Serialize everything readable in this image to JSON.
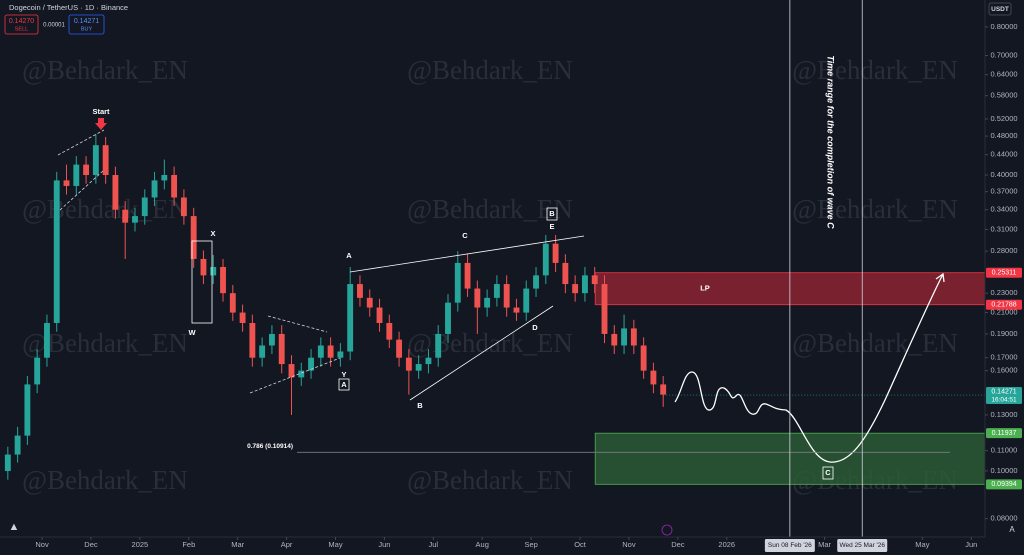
{
  "chart_data": {
    "type": "candlestick",
    "title": "Dogecoin / TetherUS · 1D · Binance",
    "currency": "USDT",
    "sell": {
      "price": "0.14270",
      "label": "SELL"
    },
    "spread": "0.00001",
    "buy": {
      "price": "0.14271",
      "label": "BUY"
    },
    "watermark": "@Behdark_EN",
    "log_scale": true,
    "grid": false,
    "up_color": "#26a69a",
    "down_color": "#ef5350",
    "xlim": [
      0.14,
      20.28
    ],
    "xticks": [
      {
        "value": 1,
        "label": "Nov"
      },
      {
        "value": 2,
        "label": "Dec"
      },
      {
        "value": 3,
        "label": "2025"
      },
      {
        "value": 4,
        "label": "Feb"
      },
      {
        "value": 5,
        "label": "Mar"
      },
      {
        "value": 6,
        "label": "Apr"
      },
      {
        "value": 7,
        "label": "May"
      },
      {
        "value": 8,
        "label": "Jun"
      },
      {
        "value": 9,
        "label": "Jul"
      },
      {
        "value": 10,
        "label": "Aug"
      },
      {
        "value": 11,
        "label": "Sep"
      },
      {
        "value": 12,
        "label": "Oct"
      },
      {
        "value": 13,
        "label": "Nov"
      },
      {
        "value": 14,
        "label": "Dec"
      },
      {
        "value": 15,
        "label": "2026"
      },
      {
        "value": 17,
        "label": "Mar"
      },
      {
        "value": 19,
        "label": "May"
      },
      {
        "value": 20,
        "label": "Jun"
      }
    ],
    "ylim": [
      0.0734,
      0.908
    ],
    "yticks": [
      {
        "value": 0.8,
        "label": "0.80000"
      },
      {
        "value": 0.7,
        "label": "0.70000"
      },
      {
        "value": 0.64,
        "label": "0.64000"
      },
      {
        "value": 0.58,
        "label": "0.58000"
      },
      {
        "value": 0.52,
        "label": "0.52000"
      },
      {
        "value": 0.48,
        "label": "0.48000"
      },
      {
        "value": 0.44,
        "label": "0.44000"
      },
      {
        "value": 0.4,
        "label": "0.40000"
      },
      {
        "value": 0.37,
        "label": "0.37000"
      },
      {
        "value": 0.34,
        "label": "0.34000"
      },
      {
        "value": 0.31,
        "label": "0.31000"
      },
      {
        "value": 0.28,
        "label": "0.28000"
      },
      {
        "value": 0.23,
        "label": "0.23000"
      },
      {
        "value": 0.21,
        "label": "0.21000"
      },
      {
        "value": 0.19,
        "label": "0.19000"
      },
      {
        "value": 0.17,
        "label": "0.17000"
      },
      {
        "value": 0.16,
        "label": "0.16000"
      },
      {
        "value": 0.13,
        "label": "0.13000"
      },
      {
        "value": 0.11,
        "label": "0.11000"
      },
      {
        "value": 0.1,
        "label": "0.10000"
      },
      {
        "value": 0.08,
        "label": "0.08000"
      }
    ],
    "x": [
      0.3,
      0.5,
      0.7,
      0.9,
      1.1,
      1.3,
      1.5,
      1.7,
      1.9,
      2.1,
      2.3,
      2.5,
      2.7,
      2.9,
      3.1,
      3.3,
      3.5,
      3.7,
      3.9,
      4.1,
      4.3,
      4.5,
      4.7,
      4.9,
      5.1,
      5.3,
      5.5,
      5.7,
      5.9,
      6.1,
      6.3,
      6.5,
      6.7,
      6.9,
      7.1,
      7.3,
      7.5,
      7.7,
      7.9,
      8.1,
      8.3,
      8.5,
      8.7,
      8.9,
      9.1,
      9.3,
      9.5,
      9.7,
      9.9,
      10.1,
      10.3,
      10.5,
      10.7,
      10.9,
      11.1,
      11.3,
      11.5,
      11.7,
      11.9,
      12.1,
      12.3,
      12.5,
      12.7,
      12.9,
      13.1,
      13.3,
      13.5,
      13.7
    ],
    "open": [
      0.1,
      0.108,
      0.118,
      0.15,
      0.17,
      0.2,
      0.39,
      0.38,
      0.42,
      0.4,
      0.46,
      0.4,
      0.34,
      0.32,
      0.33,
      0.36,
      0.39,
      0.4,
      0.36,
      0.33,
      0.27,
      0.25,
      0.26,
      0.23,
      0.21,
      0.2,
      0.17,
      0.18,
      0.19,
      0.165,
      0.155,
      0.16,
      0.17,
      0.18,
      0.17,
      0.175,
      0.24,
      0.225,
      0.215,
      0.2,
      0.185,
      0.17,
      0.16,
      0.165,
      0.17,
      0.19,
      0.22,
      0.265,
      0.235,
      0.215,
      0.225,
      0.24,
      0.215,
      0.21,
      0.235,
      0.25,
      0.29,
      0.265,
      0.24,
      0.23,
      0.25,
      0.24,
      0.19,
      0.18,
      0.195,
      0.18,
      0.16,
      0.15
    ],
    "high": [
      0.112,
      0.123,
      0.156,
      0.177,
      0.208,
      0.406,
      0.42,
      0.437,
      0.437,
      0.484,
      0.478,
      0.416,
      0.354,
      0.343,
      0.374,
      0.406,
      0.43,
      0.416,
      0.374,
      0.343,
      0.281,
      0.275,
      0.27,
      0.239,
      0.218,
      0.208,
      0.187,
      0.198,
      0.198,
      0.172,
      0.166,
      0.177,
      0.187,
      0.187,
      0.182,
      0.26,
      0.25,
      0.234,
      0.224,
      0.208,
      0.192,
      0.177,
      0.172,
      0.177,
      0.198,
      0.229,
      0.28,
      0.276,
      0.244,
      0.234,
      0.25,
      0.25,
      0.224,
      0.244,
      0.26,
      0.302,
      0.302,
      0.276,
      0.25,
      0.26,
      0.26,
      0.25,
      0.198,
      0.208,
      0.203,
      0.187,
      0.166,
      0.156
    ],
    "low": [
      0.096,
      0.104,
      0.113,
      0.144,
      0.163,
      0.192,
      0.365,
      0.365,
      0.384,
      0.384,
      0.384,
      0.326,
      0.27,
      0.307,
      0.317,
      0.346,
      0.374,
      0.346,
      0.317,
      0.259,
      0.24,
      0.24,
      0.221,
      0.202,
      0.192,
      0.163,
      0.163,
      0.173,
      0.158,
      0.13,
      0.149,
      0.154,
      0.163,
      0.163,
      0.163,
      0.168,
      0.216,
      0.206,
      0.192,
      0.178,
      0.163,
      0.143,
      0.154,
      0.158,
      0.163,
      0.182,
      0.211,
      0.226,
      0.19,
      0.206,
      0.216,
      0.206,
      0.202,
      0.202,
      0.226,
      0.24,
      0.254,
      0.23,
      0.221,
      0.221,
      0.23,
      0.182,
      0.173,
      0.173,
      0.173,
      0.154,
      0.144,
      0.135
    ],
    "close": [
      0.108,
      0.118,
      0.15,
      0.17,
      0.2,
      0.39,
      0.38,
      0.42,
      0.4,
      0.46,
      0.4,
      0.34,
      0.32,
      0.33,
      0.36,
      0.39,
      0.4,
      0.36,
      0.33,
      0.27,
      0.25,
      0.26,
      0.23,
      0.21,
      0.2,
      0.17,
      0.18,
      0.19,
      0.165,
      0.155,
      0.16,
      0.17,
      0.18,
      0.17,
      0.175,
      0.24,
      0.225,
      0.215,
      0.2,
      0.185,
      0.17,
      0.16,
      0.165,
      0.17,
      0.19,
      0.22,
      0.265,
      0.235,
      0.215,
      0.225,
      0.24,
      0.215,
      0.21,
      0.235,
      0.25,
      0.29,
      0.265,
      0.24,
      0.23,
      0.25,
      0.24,
      0.19,
      0.18,
      0.195,
      0.18,
      0.16,
      0.15,
      0.143
    ],
    "last_price": 0.14271,
    "countdown": "16:04:51",
    "zones": [
      {
        "top": 0.25311,
        "bottom": 0.21788,
        "start": 12.31,
        "label": "LP",
        "color": "#8c2330",
        "border": "#f23645"
      },
      {
        "top": 0.11937,
        "bottom": 0.09394,
        "start": 12.31,
        "color": "#2b5b35",
        "border": "#4caf50"
      }
    ],
    "fib": {
      "value": 0.10914,
      "label": "0.786 (0.10914)"
    },
    "vlines": [
      {
        "x": 16.29,
        "label": "Sun 08 Feb '26"
      },
      {
        "x": 17.77,
        "label": "Wed 25 Mar '26"
      }
    ],
    "time_note": "Time range for the completion of wave C",
    "annotations": [
      "Start",
      "W",
      "X",
      "Y",
      "A",
      "A",
      "C",
      "E",
      "B",
      "B",
      "D",
      "C"
    ],
    "scale_mode": "A"
  }
}
